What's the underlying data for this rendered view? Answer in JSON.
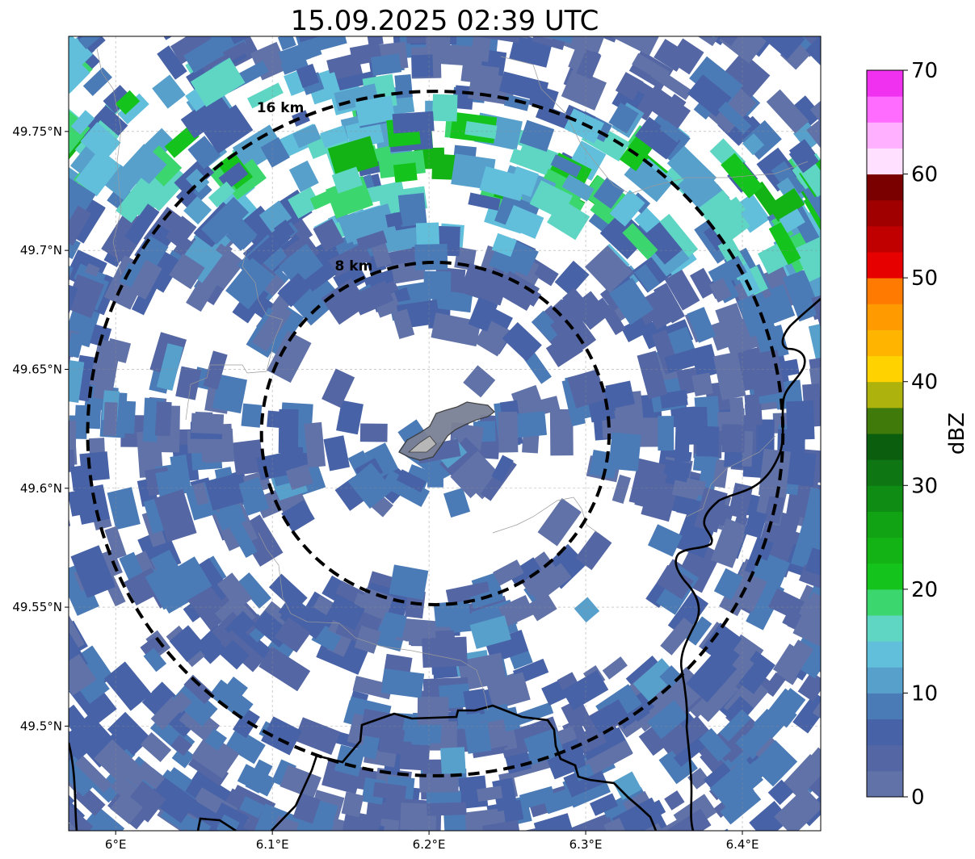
{
  "title": "15.09.2025 02:39 UTC",
  "map": {
    "extent": {
      "lon_min": 5.97,
      "lon_max": 6.45,
      "lat_min": 49.456,
      "lat_max": 49.79
    },
    "lon_ticks": [
      {
        "value": 6.0,
        "label": "6°E"
      },
      {
        "value": 6.1,
        "label": "6.1°E"
      },
      {
        "value": 6.2,
        "label": "6.2°E"
      },
      {
        "value": 6.3,
        "label": "6.3°E"
      },
      {
        "value": 6.4,
        "label": "6.4°E"
      }
    ],
    "lat_ticks": [
      {
        "value": 49.75,
        "label": "49.75°N"
      },
      {
        "value": 49.7,
        "label": "49.7°N"
      },
      {
        "value": 49.65,
        "label": "49.65°N"
      },
      {
        "value": 49.6,
        "label": "49.6°N"
      },
      {
        "value": 49.55,
        "label": "49.55°N"
      },
      {
        "value": 49.5,
        "label": "49.5°N"
      }
    ],
    "gridlines": true,
    "center": {
      "lon": 6.204,
      "lat": 49.623
    },
    "range_rings": [
      {
        "radius_km": 16,
        "label": "16 km"
      },
      {
        "radius_km": 8,
        "label": "8 km"
      }
    ],
    "city_outline_color": "#808080",
    "border_color": "#000000"
  },
  "colorbar": {
    "label": "dBZ",
    "vmin": 0,
    "vmax": 70,
    "ticks": [
      {
        "value": 0,
        "label": "0"
      },
      {
        "value": 10,
        "label": "10"
      },
      {
        "value": 20,
        "label": "20"
      },
      {
        "value": 30,
        "label": "30"
      },
      {
        "value": 40,
        "label": "40"
      },
      {
        "value": 50,
        "label": "50"
      },
      {
        "value": 60,
        "label": "60"
      },
      {
        "value": 70,
        "label": "70"
      }
    ],
    "colors": [
      "#6172a8",
      "#5466a3",
      "#4762a6",
      "#4b7bb7",
      "#58a0cc",
      "#62bfdc",
      "#5fd5c4",
      "#3cd66f",
      "#14c41c",
      "#13b316",
      "#12a315",
      "#0f8c14",
      "#0e7612",
      "#0a5e0e",
      "#3f7a0a",
      "#adb20c",
      "#ffd200",
      "#ffb400",
      "#ff9a00",
      "#ff7a00",
      "#e60000",
      "#c00000",
      "#a00000",
      "#7a0000",
      "#ffe0ff",
      "#ffb0ff",
      "#ff6cff",
      "#f032f0"
    ]
  }
}
